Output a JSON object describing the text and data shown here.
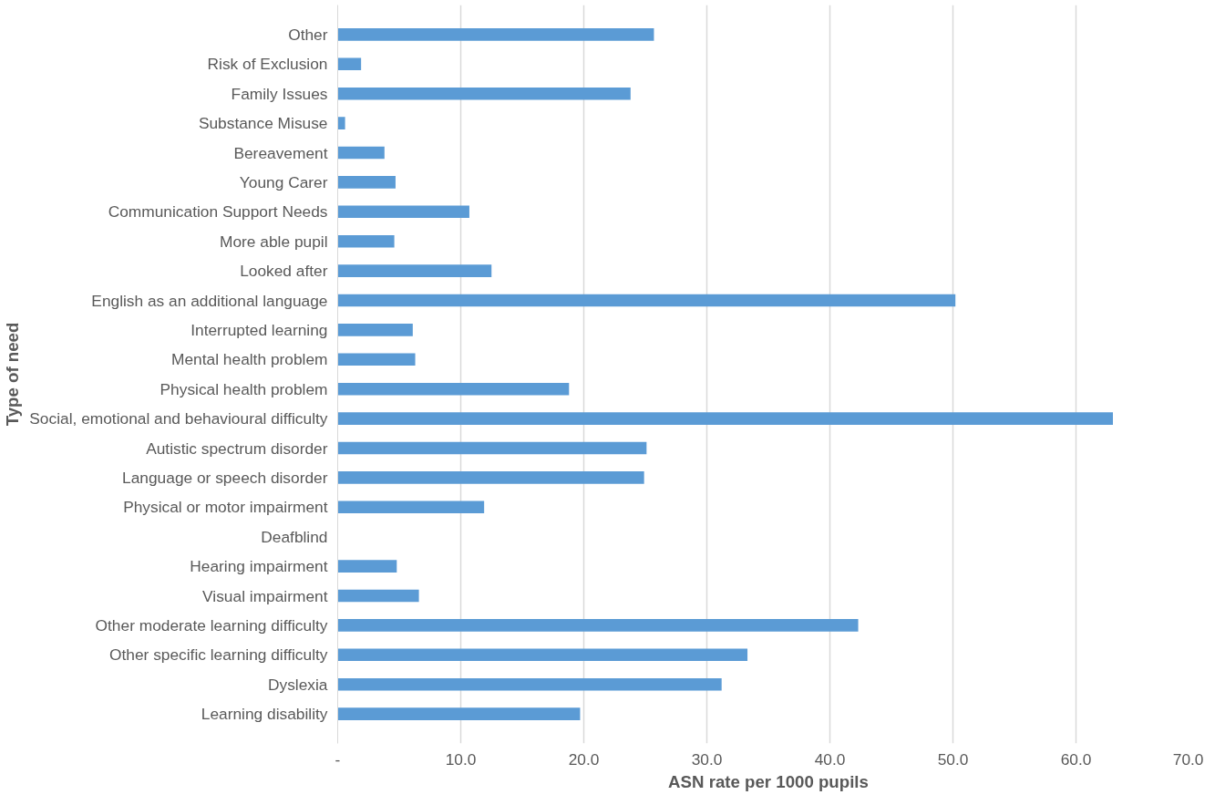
{
  "chart_data": {
    "type": "bar",
    "orientation": "horizontal",
    "xlabel": "ASN rate per 1000 pupils",
    "ylabel": "Type of need",
    "categories": [
      "Other",
      "Risk of Exclusion",
      "Family Issues",
      "Substance Misuse",
      "Bereavement",
      "Young Carer",
      "Communication Support Needs",
      "More able pupil",
      "Looked after",
      "English as an additional language",
      "Interrupted learning",
      "Mental health problem",
      "Physical health problem",
      "Social, emotional and behavioural difficulty",
      "Autistic spectrum disorder",
      "Language or speech disorder",
      "Physical or motor impairment",
      "Deafblind",
      "Hearing impairment",
      "Visual impairment",
      "Other moderate learning difficulty",
      "Other specific learning difficulty",
      "Dyslexia",
      "Learning disability"
    ],
    "values": [
      25.7,
      1.9,
      23.8,
      0.6,
      3.8,
      4.7,
      10.7,
      4.6,
      12.5,
      50.2,
      6.1,
      6.3,
      18.8,
      63.0,
      25.1,
      24.9,
      11.9,
      0,
      4.8,
      6.6,
      42.3,
      33.3,
      31.2,
      19.7
    ],
    "color": "#5b9bd5",
    "xlim": [
      0,
      70
    ],
    "xticks": [
      {
        "value": 0,
        "label": "-"
      },
      {
        "value": 10,
        "label": "10.0"
      },
      {
        "value": 20,
        "label": "20.0"
      },
      {
        "value": 30,
        "label": "30.0"
      },
      {
        "value": 40,
        "label": "40.0"
      },
      {
        "value": 50,
        "label": "50.0"
      },
      {
        "value": 60,
        "label": "60.0"
      },
      {
        "value": 70,
        "label": "70.0"
      }
    ],
    "grid": "x",
    "legend": false
  }
}
